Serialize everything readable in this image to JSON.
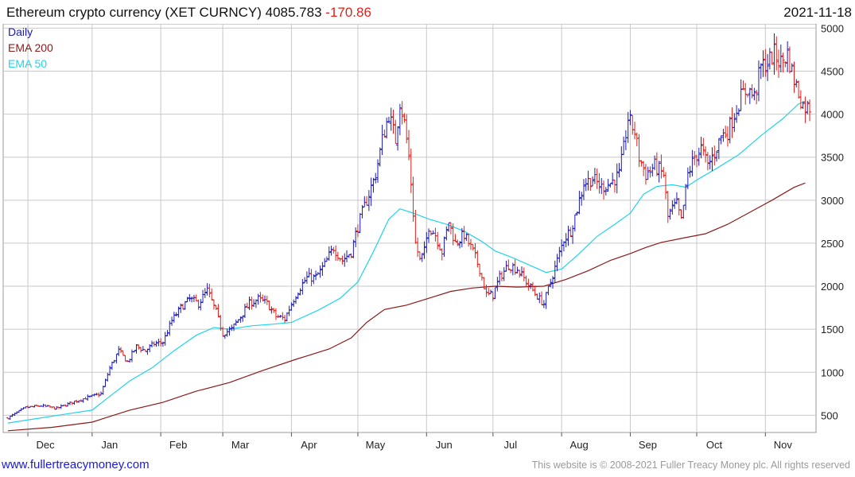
{
  "header": {
    "name": "Ethereum crypto currency",
    "ticker": "(XET CURNCY)",
    "price": "4085.783",
    "change": "-170.86",
    "date": "2021-11-18"
  },
  "footer": {
    "site": "www.fullertreacymoney.com",
    "copyright": "This website is © 2008-2021 Fuller Treacy Money plc. All rights reserved"
  },
  "colors": {
    "up": "#1a1ab8",
    "down": "#e0201b",
    "ema200": "#8b1a1a",
    "ema50": "#22d3e8",
    "grid": "#c8c8c8"
  },
  "chart_data": {
    "type": "candlestick",
    "legend": [
      "Daily",
      "EMA 200",
      "EMA 50"
    ],
    "legend_position": "top-left",
    "ylim": [
      300,
      5050
    ],
    "yticks": [
      500,
      1000,
      1500,
      2000,
      2500,
      3000,
      3500,
      4000,
      4500,
      5000
    ],
    "xlim": [
      0,
      362
    ],
    "months": [
      {
        "label": "Dec",
        "day": 9
      },
      {
        "label": "Jan",
        "day": 38
      },
      {
        "label": "Feb",
        "day": 69
      },
      {
        "label": "Mar",
        "day": 97
      },
      {
        "label": "Apr",
        "day": 128
      },
      {
        "label": "May",
        "day": 158
      },
      {
        "label": "Jun",
        "day": 189
      },
      {
        "label": "Jul",
        "day": 219
      },
      {
        "label": "Aug",
        "day": 250
      },
      {
        "label": "Sep",
        "day": 281
      },
      {
        "label": "Oct",
        "day": 311
      },
      {
        "label": "Nov",
        "day": 342
      }
    ],
    "price_path": [
      [
        0,
        470
      ],
      [
        8,
        590
      ],
      [
        15,
        610
      ],
      [
        22,
        580
      ],
      [
        30,
        660
      ],
      [
        35,
        700
      ],
      [
        42,
        750
      ],
      [
        46,
        1050
      ],
      [
        50,
        1250
      ],
      [
        54,
        1120
      ],
      [
        58,
        1300
      ],
      [
        62,
        1250
      ],
      [
        66,
        1330
      ],
      [
        70,
        1350
      ],
      [
        74,
        1600
      ],
      [
        78,
        1750
      ],
      [
        82,
        1850
      ],
      [
        86,
        1800
      ],
      [
        90,
        1950
      ],
      [
        94,
        1700
      ],
      [
        97,
        1450
      ],
      [
        101,
        1500
      ],
      [
        105,
        1650
      ],
      [
        109,
        1800
      ],
      [
        113,
        1850
      ],
      [
        117,
        1800
      ],
      [
        121,
        1650
      ],
      [
        125,
        1620
      ],
      [
        128,
        1800
      ],
      [
        131,
        1950
      ],
      [
        135,
        2100
      ],
      [
        139,
        2100
      ],
      [
        143,
        2250
      ],
      [
        147,
        2450
      ],
      [
        151,
        2300
      ],
      [
        155,
        2400
      ],
      [
        158,
        2700
      ],
      [
        162,
        3000
      ],
      [
        166,
        3300
      ],
      [
        169,
        3700
      ],
      [
        172,
        4000
      ],
      [
        175,
        3700
      ],
      [
        177,
        4150
      ],
      [
        179,
        3900
      ],
      [
        181,
        3500
      ],
      [
        182,
        3200
      ],
      [
        184,
        2500
      ],
      [
        186,
        2300
      ],
      [
        188,
        2400
      ],
      [
        190,
        2700
      ],
      [
        193,
        2600
      ],
      [
        196,
        2400
      ],
      [
        199,
        2750
      ],
      [
        202,
        2500
      ],
      [
        206,
        2600
      ],
      [
        210,
        2400
      ],
      [
        213,
        2200
      ],
      [
        216,
        1900
      ],
      [
        219,
        1900
      ],
      [
        222,
        2100
      ],
      [
        226,
        2250
      ],
      [
        230,
        2200
      ],
      [
        234,
        2050
      ],
      [
        237,
        1950
      ],
      [
        240,
        1850
      ],
      [
        242,
        1800
      ],
      [
        245,
        2050
      ],
      [
        248,
        2300
      ],
      [
        251,
        2550
      ],
      [
        254,
        2650
      ],
      [
        257,
        2900
      ],
      [
        260,
        3200
      ],
      [
        264,
        3250
      ],
      [
        268,
        3150
      ],
      [
        272,
        3200
      ],
      [
        276,
        3300
      ],
      [
        278,
        3600
      ],
      [
        280,
        3950
      ],
      [
        283,
        3800
      ],
      [
        285,
        3500
      ],
      [
        288,
        3300
      ],
      [
        292,
        3400
      ],
      [
        296,
        3300
      ],
      [
        298,
        2800
      ],
      [
        300,
        2900
      ],
      [
        302,
        2950
      ],
      [
        304,
        2750
      ],
      [
        307,
        3300
      ],
      [
        310,
        3500
      ],
      [
        313,
        3600
      ],
      [
        316,
        3400
      ],
      [
        319,
        3550
      ],
      [
        322,
        3750
      ],
      [
        325,
        3800
      ],
      [
        328,
        4000
      ],
      [
        331,
        4200
      ],
      [
        334,
        4300
      ],
      [
        337,
        4200
      ],
      [
        340,
        4550
      ],
      [
        343,
        4600
      ],
      [
        346,
        4700
      ],
      [
        349,
        4600
      ],
      [
        352,
        4700
      ],
      [
        355,
        4400
      ],
      [
        357,
        4250
      ],
      [
        359,
        4100
      ],
      [
        360,
        4085
      ]
    ],
    "ema50": [
      [
        0,
        410
      ],
      [
        15,
        470
      ],
      [
        25,
        510
      ],
      [
        38,
        560
      ],
      [
        45,
        700
      ],
      [
        55,
        900
      ],
      [
        65,
        1050
      ],
      [
        75,
        1250
      ],
      [
        85,
        1430
      ],
      [
        93,
        1520
      ],
      [
        100,
        1500
      ],
      [
        110,
        1540
      ],
      [
        120,
        1560
      ],
      [
        128,
        1580
      ],
      [
        140,
        1720
      ],
      [
        150,
        1860
      ],
      [
        158,
        2050
      ],
      [
        165,
        2400
      ],
      [
        172,
        2780
      ],
      [
        177,
        2900
      ],
      [
        183,
        2850
      ],
      [
        190,
        2780
      ],
      [
        198,
        2720
      ],
      [
        206,
        2640
      ],
      [
        214,
        2520
      ],
      [
        220,
        2410
      ],
      [
        228,
        2330
      ],
      [
        236,
        2240
      ],
      [
        243,
        2160
      ],
      [
        250,
        2200
      ],
      [
        258,
        2380
      ],
      [
        266,
        2580
      ],
      [
        274,
        2720
      ],
      [
        281,
        2850
      ],
      [
        287,
        3070
      ],
      [
        293,
        3160
      ],
      [
        300,
        3180
      ],
      [
        306,
        3150
      ],
      [
        312,
        3250
      ],
      [
        320,
        3370
      ],
      [
        330,
        3530
      ],
      [
        340,
        3750
      ],
      [
        350,
        3950
      ],
      [
        357,
        4120
      ],
      [
        360,
        4150
      ]
    ],
    "ema200": [
      [
        0,
        320
      ],
      [
        20,
        360
      ],
      [
        38,
        420
      ],
      [
        55,
        560
      ],
      [
        70,
        650
      ],
      [
        85,
        780
      ],
      [
        100,
        880
      ],
      [
        115,
        1020
      ],
      [
        130,
        1150
      ],
      [
        145,
        1270
      ],
      [
        155,
        1400
      ],
      [
        162,
        1580
      ],
      [
        170,
        1730
      ],
      [
        180,
        1780
      ],
      [
        190,
        1860
      ],
      [
        200,
        1940
      ],
      [
        210,
        1980
      ],
      [
        220,
        2000
      ],
      [
        230,
        1990
      ],
      [
        242,
        2000
      ],
      [
        252,
        2080
      ],
      [
        262,
        2180
      ],
      [
        272,
        2300
      ],
      [
        281,
        2380
      ],
      [
        288,
        2450
      ],
      [
        295,
        2510
      ],
      [
        305,
        2560
      ],
      [
        315,
        2610
      ],
      [
        325,
        2720
      ],
      [
        335,
        2860
      ],
      [
        345,
        3000
      ],
      [
        355,
        3150
      ],
      [
        360,
        3200
      ]
    ],
    "candles_seed": 7
  }
}
